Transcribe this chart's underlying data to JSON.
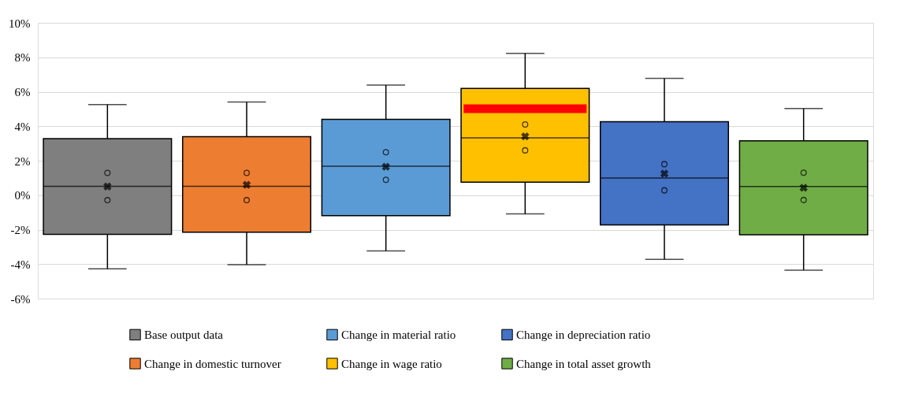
{
  "chart_data": {
    "type": "box",
    "categories": [
      null,
      null,
      null,
      null,
      null,
      null
    ],
    "series": [
      {
        "name": "Base output data",
        "color": "#7f7f7f",
        "boxes": [
          {
            "low": -4.27,
            "q1": -2.27,
            "median": 0.52,
            "q3": 3.28,
            "high": 5.26,
            "mean": 0.5,
            "outliers": [
              1.29,
              -0.29
            ]
          },
          null,
          null,
          null,
          null,
          null
        ]
      },
      {
        "name": "Change in domestic turnover",
        "color": "#ed7d31",
        "boxes": [
          null,
          {
            "low": -4.03,
            "q1": -2.15,
            "median": 0.52,
            "q3": 3.39,
            "high": 5.41,
            "mean": 0.6,
            "outliers": [
              1.29,
              -0.29
            ]
          },
          null,
          null,
          null,
          null
        ]
      },
      {
        "name": "Change in material ratio",
        "color": "#5b9bd5",
        "boxes": [
          null,
          null,
          {
            "low": -3.23,
            "q1": -1.19,
            "median": 1.68,
            "q3": 4.4,
            "high": 6.39,
            "mean": 1.65,
            "outliers": [
              2.49,
              0.89
            ]
          },
          null,
          null,
          null
        ]
      },
      {
        "name": "Change in wage ratio",
        "color": "#ffc000",
        "boxes": [
          null,
          null,
          null,
          {
            "low": -1.09,
            "q1": 0.76,
            "median": 3.33,
            "q3": 6.19,
            "high": 8.23,
            "mean": 3.41,
            "outliers": [
              4.1,
              2.6
            ]
          },
          null,
          null
        ]
      },
      {
        "name": "Change in depreciation ratio",
        "color": "#4472c4",
        "boxes": [
          null,
          null,
          null,
          null,
          {
            "low": -3.73,
            "q1": -1.73,
            "median": 0.99,
            "q3": 4.26,
            "high": 6.78,
            "mean": 1.25,
            "outliers": [
              1.8,
              0.28
            ]
          },
          null
        ]
      },
      {
        "name": "Change in total asset growth",
        "color": "#70ad47",
        "boxes": [
          null,
          null,
          null,
          null,
          null,
          {
            "low": -4.35,
            "q1": -2.3,
            "median": 0.5,
            "q3": 3.15,
            "high": 5.03,
            "mean": 0.43,
            "outliers": [
              1.3,
              -0.28
            ]
          }
        ]
      },
      {
        "type": "bar",
        "color": "#ff0000",
        "base": [
          null,
          null,
          null,
          4.77,
          null,
          null
        ],
        "values": [
          null,
          null,
          null,
          0.5,
          null,
          null
        ]
      }
    ],
    "ylim": [
      -6,
      10
    ],
    "yticks": [
      {
        "value": -6,
        "label": "-6%"
      },
      {
        "value": -4,
        "label": "-4%"
      },
      {
        "value": -2,
        "label": "-2%"
      },
      {
        "value": 0,
        "label": "0%"
      },
      {
        "value": 2,
        "label": "2%"
      },
      {
        "value": 4,
        "label": "4%"
      },
      {
        "value": 6,
        "label": "6%"
      },
      {
        "value": 8,
        "label": "8%"
      },
      {
        "value": 10,
        "label": "10%"
      }
    ],
    "grid": "y",
    "legend": "bottom",
    "tick_labels": "y"
  }
}
